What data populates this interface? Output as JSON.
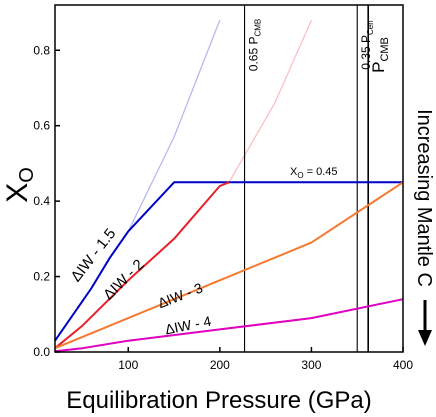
{
  "chart_data": {
    "type": "line",
    "xlabel": "Equilibration Pressure (GPa)",
    "ylabel_main": "X",
    "ylabel_sub": "O",
    "xlim": [
      20,
      400
    ],
    "ylim": [
      0,
      0.92
    ],
    "xticks": [
      100,
      200,
      300,
      400
    ],
    "xtick_labels": [
      "100",
      "200",
      "300",
      "400"
    ],
    "yticks": [
      0.0,
      0.2,
      0.4,
      0.6,
      0.8
    ],
    "ytick_labels": [
      "0.0",
      "0.2",
      "0.4",
      "0.6",
      "0.8"
    ],
    "grid": false,
    "series": [
      {
        "name": "ΔIW - 1.5",
        "color": "#0000c8",
        "values": [
          [
            20,
            0.03
          ],
          [
            40,
            0.1
          ],
          [
            60,
            0.17
          ],
          [
            80,
            0.25
          ],
          [
            100,
            0.32
          ],
          [
            150,
            0.45
          ],
          [
            400,
            0.45
          ]
        ],
        "faded_values": [
          [
            100,
            0.32
          ],
          [
            150,
            0.57
          ],
          [
            200,
            0.88
          ]
        ]
      },
      {
        "name": "ΔIW - 2",
        "color": "#e8202a",
        "values": [
          [
            20,
            0.01
          ],
          [
            50,
            0.07
          ],
          [
            100,
            0.19
          ],
          [
            150,
            0.3
          ],
          [
            200,
            0.44
          ],
          [
            210,
            0.45
          ]
        ],
        "faded_values": [
          [
            210,
            0.45
          ],
          [
            260,
            0.66
          ],
          [
            300,
            0.88
          ]
        ]
      },
      {
        "name": "ΔIW - 3",
        "color": "#f47a30",
        "values": [
          [
            20,
            0.01
          ],
          [
            50,
            0.04
          ],
          [
            100,
            0.09
          ],
          [
            150,
            0.14
          ],
          [
            200,
            0.19
          ],
          [
            300,
            0.29
          ],
          [
            400,
            0.45
          ]
        ]
      },
      {
        "name": "ΔIW - 4",
        "color": "#e000c0",
        "values": [
          [
            20,
            0.002
          ],
          [
            50,
            0.01
          ],
          [
            100,
            0.03
          ],
          [
            200,
            0.06
          ],
          [
            300,
            0.09
          ],
          [
            400,
            0.14
          ]
        ]
      }
    ],
    "vlines": [
      {
        "x": 227,
        "label_main": "0.65 P",
        "label_sub": "CMB",
        "bold": false
      },
      {
        "x": 350,
        "label_main": "0.35 P",
        "label_sub": "Cen",
        "bold": false
      },
      {
        "x": 362,
        "label_main": "P",
        "label_sub": "CMB",
        "bold": true
      }
    ],
    "annotations": {
      "xo_line_main": "X",
      "xo_line_sub": "O",
      "xo_line_value": " = 0.45",
      "right_side": "Increasing Mantle C"
    }
  }
}
